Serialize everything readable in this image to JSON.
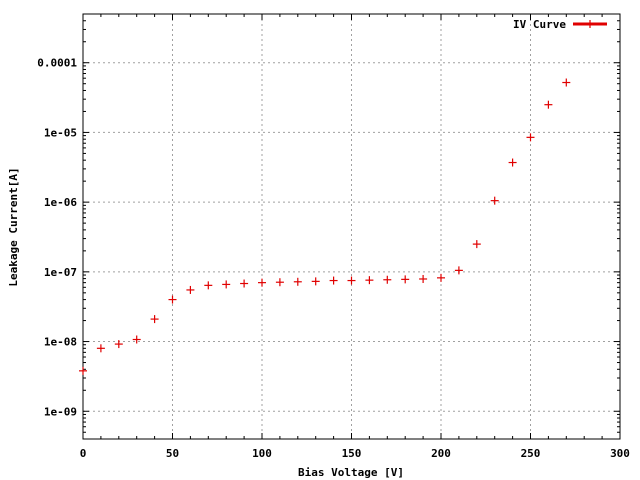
{
  "chart_data": {
    "type": "scatter",
    "title": "",
    "xlabel": "Bias Voltage [V]",
    "ylabel": "Leakage Current[A]",
    "xlim": [
      0,
      300
    ],
    "ylim": [
      4e-10,
      0.0005
    ],
    "y_scale": "log",
    "grid": true,
    "legend_position": "top-right",
    "x_ticks": [
      0,
      50,
      100,
      150,
      200,
      250,
      300
    ],
    "x_tick_labels": [
      "0",
      "50",
      "100",
      "150",
      "200",
      "250",
      "300"
    ],
    "y_ticks": [
      1e-09,
      1e-08,
      1e-07,
      1e-06,
      1e-05,
      0.0001
    ],
    "y_tick_labels": [
      "1e-09",
      "1e-08",
      "1e-07",
      "1e-06",
      "1e-05",
      "0.0001"
    ],
    "series": [
      {
        "name": "IV Curve",
        "color": "#e00000",
        "marker": "plus",
        "x": [
          0,
          10,
          20,
          30,
          40,
          50,
          60,
          70,
          80,
          90,
          100,
          110,
          120,
          130,
          140,
          150,
          160,
          170,
          180,
          190,
          200,
          210,
          220,
          230,
          240,
          250,
          260,
          270
        ],
        "y": [
          3.8e-09,
          8e-09,
          9.2e-09,
          1.07e-08,
          2.1e-08,
          4e-08,
          5.5e-08,
          6.4e-08,
          6.6e-08,
          6.8e-08,
          7e-08,
          7.1e-08,
          7.2e-08,
          7.3e-08,
          7.5e-08,
          7.5e-08,
          7.6e-08,
          7.7e-08,
          7.8e-08,
          7.9e-08,
          8.2e-08,
          1.05e-07,
          2.5e-07,
          1.05e-06,
          3.7e-06,
          8.5e-06,
          2.5e-05,
          5.2e-05
        ]
      }
    ]
  }
}
